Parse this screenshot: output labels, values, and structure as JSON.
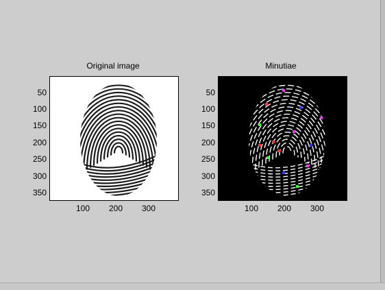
{
  "figure": {
    "axes": [
      {
        "title": "Original image",
        "yticks": [
          "50",
          "100",
          "150",
          "200",
          "250",
          "300",
          "350"
        ],
        "xticks": [
          "100",
          "200",
          "300"
        ],
        "background": "#ffffff",
        "ridge_color": "#1a1a1a"
      },
      {
        "title": "Minutiae",
        "yticks": [
          "50",
          "100",
          "150",
          "200",
          "250",
          "300",
          "350"
        ],
        "xticks": [
          "100",
          "200",
          "300"
        ],
        "background": "#000000",
        "ridge_color": "#ffffff",
        "marker_colors": [
          "#ff3333",
          "#ff33ff",
          "#3333ff",
          "#33ff33"
        ]
      }
    ]
  }
}
